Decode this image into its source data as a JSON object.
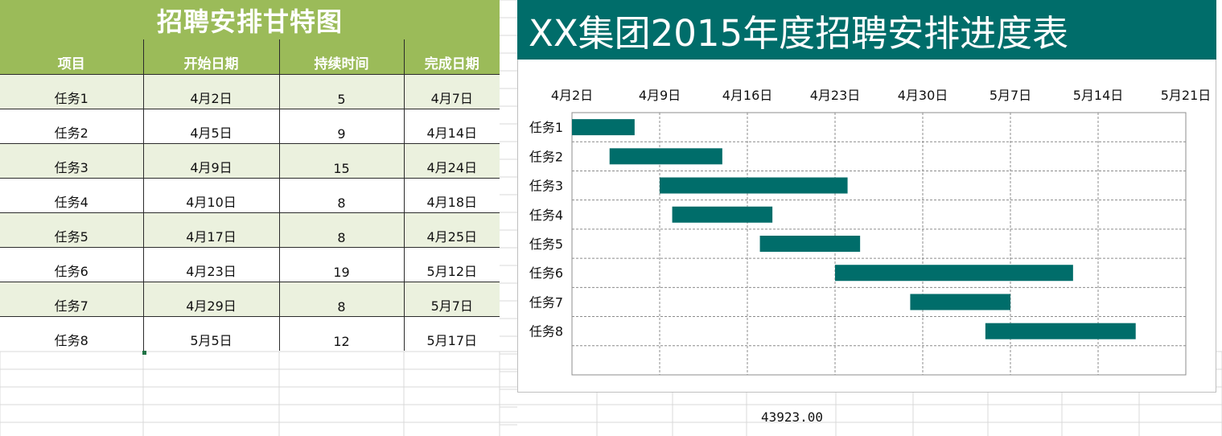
{
  "table": {
    "title": "招聘安排甘特图",
    "headers": [
      "项目",
      "开始日期",
      "持续时间",
      "完成日期"
    ],
    "rows": [
      [
        "任务1",
        "4月2日",
        "5",
        "4月7日"
      ],
      [
        "任务2",
        "4月5日",
        "9",
        "4月14日"
      ],
      [
        "任务3",
        "4月9日",
        "15",
        "4月24日"
      ],
      [
        "任务4",
        "4月10日",
        "8",
        "4月18日"
      ],
      [
        "任务5",
        "4月17日",
        "8",
        "4月25日"
      ],
      [
        "任务6",
        "4月23日",
        "19",
        "5月12日"
      ],
      [
        "任务7",
        "4月29日",
        "8",
        "5月7日"
      ],
      [
        "任务8",
        "5月5日",
        "12",
        "5月17日"
      ]
    ]
  },
  "chart_data": {
    "type": "bar",
    "title": "XX集团2015年度招聘安排进度表",
    "categories": [
      "任务1",
      "任务2",
      "任务3",
      "任务4",
      "任务5",
      "任务6",
      "任务7",
      "任务8"
    ],
    "series": [
      {
        "start": [
          "2015-04-02",
          "2015-04-05",
          "2015-04-09",
          "2015-04-10",
          "2015-04-17",
          "2015-04-23",
          "2015-04-29",
          "2015-05-05"
        ],
        "duration_days": [
          5,
          9,
          15,
          8,
          8,
          19,
          8,
          12
        ]
      }
    ],
    "x_ticks": [
      "4月2日",
      "4月9日",
      "4月16日",
      "4月23日",
      "4月30日",
      "5月7日",
      "5月14日",
      "5月21日"
    ],
    "xlim": [
      "2015-04-02",
      "2015-05-21"
    ],
    "x_axis_position": "top",
    "grid": true,
    "bar_color": "#006d6a"
  },
  "stray_cell": "43923.00"
}
